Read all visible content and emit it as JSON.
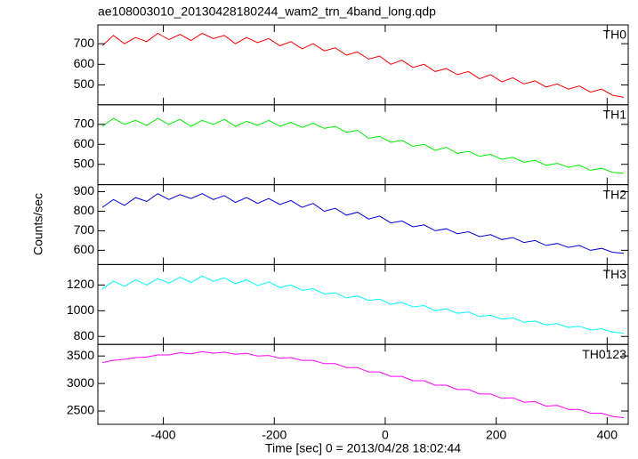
{
  "chart_data": {
    "type": "line",
    "title": "ae108003010_20130428180244_wam2_trn_4band_long.qdp",
    "xlabel": "Time [sec] 0 = 2013/04/28 18:02:44",
    "ylabel": "Counts/sec",
    "xlim": [
      -518,
      438
    ],
    "xticks": [
      -400,
      -200,
      0,
      200,
      400
    ],
    "x": [
      -510,
      -490,
      -470,
      -450,
      -430,
      -410,
      -390,
      -370,
      -350,
      -330,
      -310,
      -290,
      -270,
      -250,
      -230,
      -210,
      -190,
      -170,
      -150,
      -130,
      -110,
      -90,
      -70,
      -50,
      -30,
      -10,
      10,
      30,
      50,
      70,
      90,
      110,
      130,
      150,
      170,
      190,
      210,
      230,
      250,
      270,
      290,
      310,
      330,
      350,
      370,
      390,
      410,
      430
    ],
    "series": [
      {
        "name": "TH0",
        "color": "#ff0000",
        "ylim": [
          404,
          791
        ],
        "yticks": [
          500,
          600,
          700
        ],
        "values": [
          690,
          740,
          700,
          730,
          710,
          750,
          720,
          745,
          715,
          750,
          725,
          740,
          700,
          730,
          705,
          725,
          690,
          710,
          675,
          700,
          665,
          680,
          645,
          660,
          625,
          640,
          600,
          620,
          585,
          600,
          565,
          580,
          550,
          565,
          530,
          550,
          515,
          535,
          505,
          520,
          490,
          505,
          480,
          495,
          465,
          480,
          450,
          440
        ]
      },
      {
        "name": "TH1",
        "color": "#00ee00",
        "ylim": [
          398,
          798
        ],
        "yticks": [
          500,
          600,
          700
        ],
        "values": [
          690,
          730,
          700,
          720,
          695,
          730,
          700,
          725,
          690,
          720,
          700,
          725,
          690,
          715,
          695,
          720,
          690,
          710,
          685,
          705,
          680,
          690,
          660,
          670,
          630,
          640,
          610,
          620,
          590,
          600,
          570,
          585,
          555,
          565,
          540,
          550,
          525,
          535,
          510,
          520,
          495,
          505,
          485,
          495,
          470,
          480,
          460,
          455
        ]
      },
      {
        "name": "TH2",
        "color": "#0000dd",
        "ylim": [
          527,
          936
        ],
        "yticks": [
          600,
          700,
          800,
          900
        ],
        "values": [
          820,
          860,
          830,
          870,
          850,
          890,
          860,
          885,
          865,
          890,
          860,
          880,
          845,
          870,
          840,
          865,
          835,
          855,
          820,
          840,
          800,
          815,
          780,
          795,
          760,
          775,
          740,
          750,
          720,
          730,
          700,
          710,
          685,
          695,
          670,
          680,
          655,
          665,
          640,
          650,
          625,
          635,
          615,
          625,
          600,
          610,
          590,
          585
        ]
      },
      {
        "name": "TH3",
        "color": "#00ffff",
        "ylim": [
          738,
          1359
        ],
        "yticks": [
          800,
          1000,
          1200
        ],
        "values": [
          1170,
          1230,
          1190,
          1240,
          1200,
          1250,
          1215,
          1260,
          1220,
          1270,
          1230,
          1255,
          1210,
          1240,
          1195,
          1225,
          1180,
          1200,
          1160,
          1170,
          1130,
          1140,
          1100,
          1115,
          1080,
          1090,
          1050,
          1065,
          1030,
          1040,
          1000,
          1015,
          980,
          990,
          955,
          965,
          935,
          945,
          910,
          920,
          890,
          900,
          870,
          880,
          850,
          860,
          835,
          825
        ]
      },
      {
        "name": "TH0123",
        "color": "#ff00ff",
        "ylim": [
          2258,
          3710
        ],
        "yticks": [
          2500,
          3000,
          3500
        ],
        "values": [
          3380,
          3420,
          3440,
          3470,
          3480,
          3520,
          3520,
          3560,
          3540,
          3580,
          3550,
          3570,
          3530,
          3550,
          3500,
          3510,
          3460,
          3470,
          3420,
          3420,
          3360,
          3360,
          3290,
          3290,
          3210,
          3210,
          3130,
          3130,
          3050,
          3050,
          2970,
          2970,
          2890,
          2890,
          2810,
          2810,
          2730,
          2740,
          2660,
          2670,
          2590,
          2600,
          2530,
          2530,
          2460,
          2460,
          2400,
          2380
        ]
      }
    ]
  }
}
